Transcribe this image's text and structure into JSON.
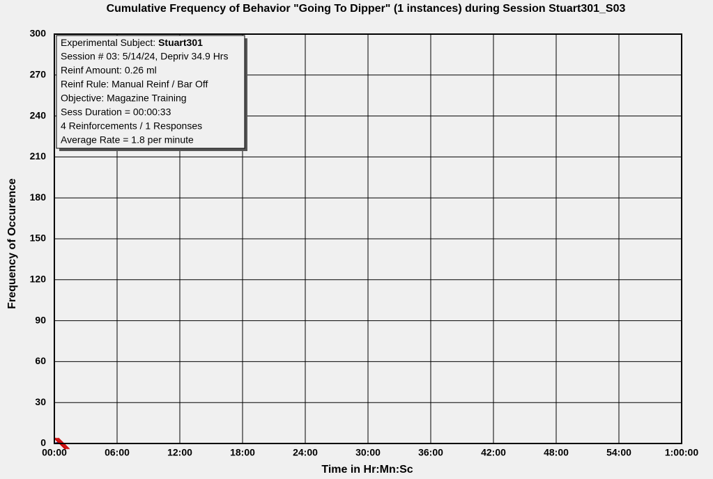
{
  "chart_data": {
    "type": "line",
    "title": "Cumulative Frequency of Behavior \"Going To Dipper\" (1 instances) during Session Stuart301_S03",
    "x_label": "Time in Hr:Mn:Sc",
    "y_label": "Frequency of Occurence",
    "xlim": [
      0,
      60
    ],
    "ylim": [
      0,
      300
    ],
    "xticks": [
      {
        "value": 0,
        "label": "00:00"
      },
      {
        "value": 6,
        "label": "06:00"
      },
      {
        "value": 12,
        "label": "12:00"
      },
      {
        "value": 18,
        "label": "18:00"
      },
      {
        "value": 24,
        "label": "24:00"
      },
      {
        "value": 30,
        "label": "30:00"
      },
      {
        "value": 36,
        "label": "36:00"
      },
      {
        "value": 42,
        "label": "42:00"
      },
      {
        "value": 48,
        "label": "48:00"
      },
      {
        "value": 54,
        "label": "54:00"
      },
      {
        "value": 60,
        "label": "1:00:00"
      }
    ],
    "yticks": [
      0,
      30,
      60,
      90,
      120,
      150,
      180,
      210,
      240,
      270,
      300
    ],
    "grid": true,
    "series": [
      {
        "color": "#1a1a80",
        "x": [
          0,
          0.55
        ],
        "values": [
          0,
          1
        ]
      }
    ],
    "reinforcements": {
      "color": "#cc0000",
      "x": [
        0.1,
        0.2,
        0.35,
        0.5
      ]
    },
    "info_box": {
      "subject_label": "Experimental Subject:",
      "subject": "Stuart301",
      "lines": [
        "Session # 03: 5/14/24, Depriv 34.9 Hrs",
        "Reinf Amount: 0.26 ml",
        "Reinf Rule: Manual Reinf / Bar Off",
        "Objective: Magazine Training",
        "Sess Duration = 00:00:33",
        "4 Reinforcements / 1 Responses",
        "Average Rate = 1.8 per minute"
      ]
    }
  }
}
